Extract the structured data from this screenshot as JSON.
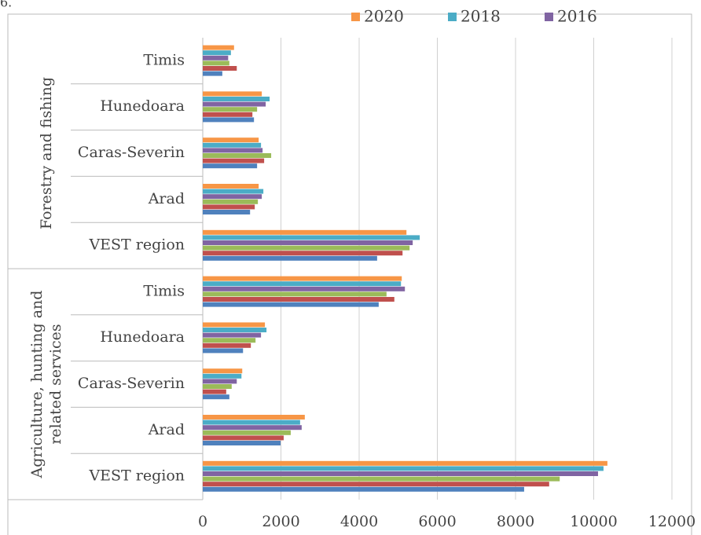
{
  "caption": "6.",
  "chart_data": {
    "type": "bar",
    "orientation": "horizontal",
    "groups": [
      {
        "label": [
          "Forestry and fishing"
        ],
        "categories": [
          "Timis",
          "Hunedoara",
          "Caras-Severin",
          "Arad",
          "VEST region"
        ]
      },
      {
        "label": [
          "Agriculture, hunting and",
          "related services"
        ],
        "categories": [
          "Timis",
          "Hunedoara",
          "Caras-Severin",
          "Arad",
          "VEST region"
        ]
      }
    ],
    "series": [
      {
        "name": "2020",
        "color": "#f79646",
        "values": [
          800,
          1510,
          1430,
          1430,
          5210,
          5090,
          1590,
          1010,
          2610,
          10350
        ]
      },
      {
        "name": "2018",
        "color": "#4bacc6",
        "values": [
          720,
          1710,
          1490,
          1550,
          5550,
          5070,
          1630,
          990,
          2490,
          10250
        ]
      },
      {
        "name": "2016",
        "color": "#8064a2",
        "values": [
          650,
          1610,
          1530,
          1510,
          5370,
          5170,
          1490,
          870,
          2530,
          10110
        ]
      },
      {
        "color": "#9bbb59",
        "values": [
          680,
          1390,
          1750,
          1410,
          5290,
          4700,
          1350,
          740,
          2250,
          9130
        ]
      },
      {
        "color": "#c0504d",
        "values": [
          870,
          1270,
          1570,
          1330,
          5110,
          4900,
          1230,
          600,
          2070,
          8860
        ]
      },
      {
        "color": "#4f81bd",
        "values": [
          500,
          1310,
          1390,
          1210,
          4460,
          4500,
          1030,
          680,
          1990,
          8220
        ]
      }
    ],
    "xlim": [
      0,
      12000
    ],
    "xticks": [
      0,
      2000,
      4000,
      6000,
      8000,
      10000,
      12000
    ],
    "grid": true
  }
}
